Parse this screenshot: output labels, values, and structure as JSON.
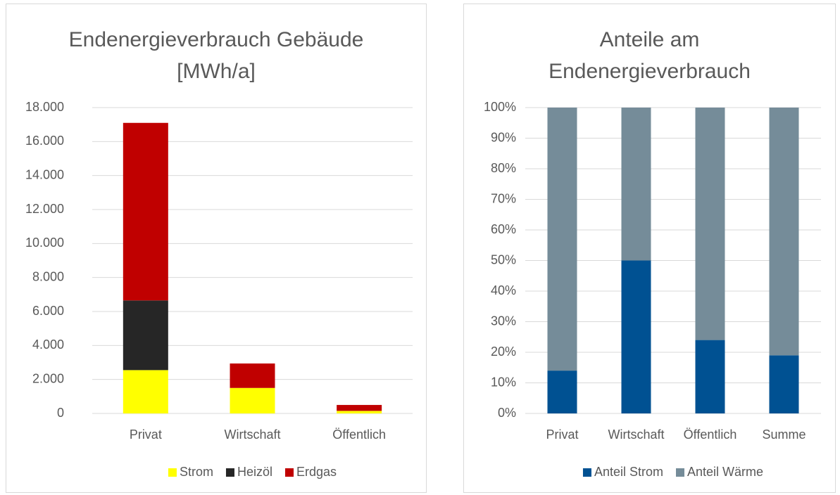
{
  "chart_data": [
    {
      "type": "stacked_bar",
      "title": "Endenergieverbrauch Gebäude [MWh/a]",
      "categories": [
        "Privat",
        "Wirtschaft",
        "Öffentlich"
      ],
      "series": [
        {
          "name": "Strom",
          "color": "#ffff00",
          "values": [
            2550,
            1500,
            150
          ]
        },
        {
          "name": "Heizöl",
          "color": "#262626",
          "values": [
            4100,
            0,
            0
          ]
        },
        {
          "name": "Erdgas",
          "color": "#c00000",
          "values": [
            10450,
            1440,
            350
          ]
        }
      ],
      "ylim": [
        0,
        18000
      ],
      "yticks": [
        0,
        {
          "value": 2000,
          "label": "2.000"
        },
        {
          "value": 4000,
          "label": "4.000"
        },
        {
          "value": 6000,
          "label": "6.000"
        },
        {
          "value": 8000,
          "label": "8.000"
        },
        {
          "value": 10000,
          "label": "10.000"
        },
        {
          "value": 12000,
          "label": "12.000"
        },
        {
          "value": 14000,
          "label": "14.000"
        },
        {
          "value": 16000,
          "label": "16.000"
        },
        {
          "value": 18000,
          "label": "18.000"
        }
      ],
      "grid": true,
      "legend": "bottom"
    },
    {
      "type": "stacked_bar",
      "title": "Anteile am Endenergieverbrauch",
      "categories": [
        "Privat",
        "Wirtschaft",
        "Öffentlich",
        "Summe"
      ],
      "series": [
        {
          "name": "Anteil Strom",
          "color": "#005192",
          "values": [
            14,
            50,
            24,
            19
          ]
        },
        {
          "name": "Anteil Wärme",
          "color": "#758c99",
          "values": [
            86,
            50,
            76,
            81
          ]
        }
      ],
      "ylim": [
        0,
        100
      ],
      "yticks": [
        {
          "value": 0,
          "label": "0%"
        },
        {
          "value": 10,
          "label": "10%"
        },
        {
          "value": 20,
          "label": "20%"
        },
        {
          "value": 30,
          "label": "30%"
        },
        {
          "value": 40,
          "label": "40%"
        },
        {
          "value": 50,
          "label": "50%"
        },
        {
          "value": 60,
          "label": "60%"
        },
        {
          "value": 70,
          "label": "70%"
        },
        {
          "value": 80,
          "label": "80%"
        },
        {
          "value": 90,
          "label": "90%"
        },
        {
          "value": 100,
          "label": "100%"
        }
      ],
      "grid": true,
      "legend": "bottom"
    }
  ]
}
